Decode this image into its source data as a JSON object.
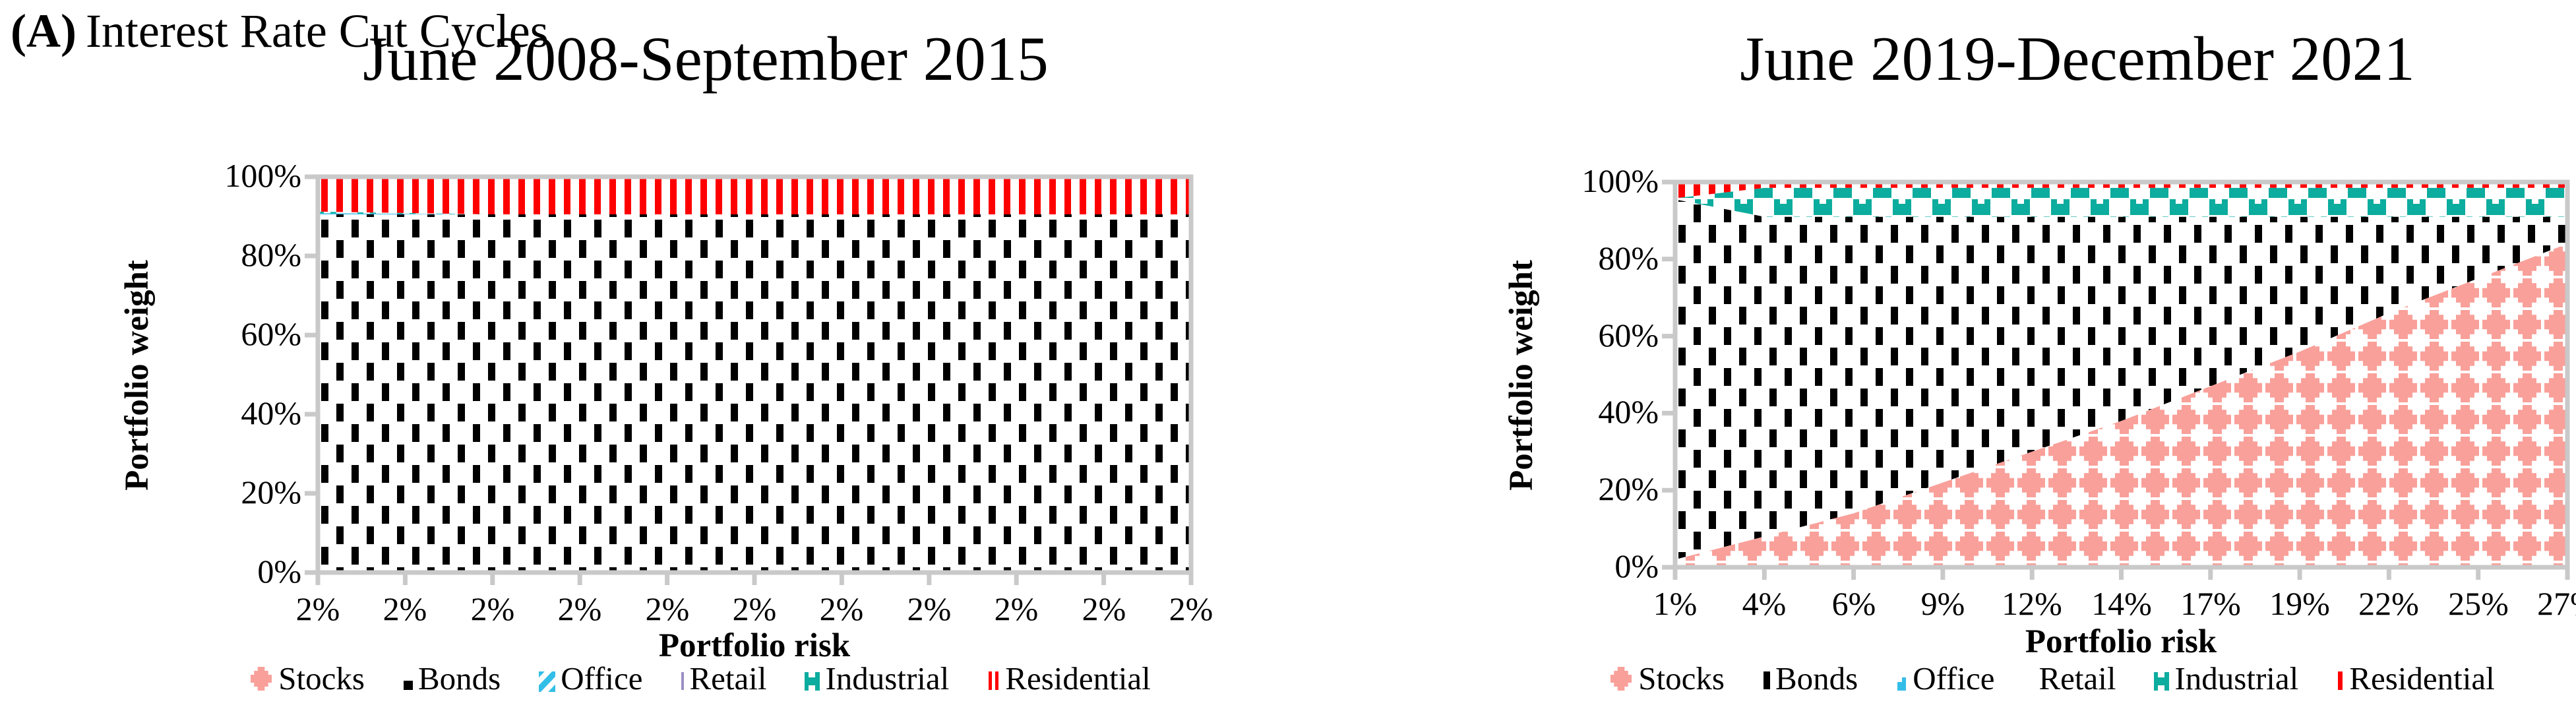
{
  "figure": {
    "label": "(A)",
    "title": "Interest Rate Cut Cycles"
  },
  "colors": {
    "stocks": "#F9A09A",
    "bonds": "#000000",
    "office": "#33BEE8",
    "retail": "#9B8EC4",
    "industrial": "#0CAC9E",
    "residential": "#FF0000",
    "axis": "#C9C9C9",
    "text": "#000000"
  },
  "chart_data": [
    {
      "type": "area",
      "stacked": true,
      "title": "June 2008-September 2015",
      "xlabel": "Portfolio risk",
      "ylabel": "Portfolio weight",
      "ylim": [
        0,
        100
      ],
      "grid": false,
      "legend_position": "bottom",
      "x_values_pct": [
        2,
        2,
        2,
        2,
        2,
        2,
        2,
        2,
        2,
        2,
        2
      ],
      "x_tick_labels": [
        "2%",
        "2%",
        "2%",
        "2%",
        "2%",
        "2%",
        "2%",
        "2%",
        "2%",
        "2%",
        "2%"
      ],
      "y_tick_labels": [
        "0%",
        "20%",
        "40%",
        "60%",
        "80%",
        "100%"
      ],
      "series": [
        {
          "name": "Stocks",
          "values": [
            0,
            0,
            0,
            0,
            0,
            0,
            0,
            0,
            0,
            0,
            0
          ]
        },
        {
          "name": "Bonds",
          "values": [
            90.5,
            90.5,
            90.5,
            90.5,
            90.5,
            90.5,
            90.5,
            90.5,
            90.5,
            90.5,
            90.5
          ]
        },
        {
          "name": "Office",
          "values": [
            0.3,
            0.15,
            0,
            0,
            0,
            0,
            0,
            0,
            0,
            0,
            0
          ]
        },
        {
          "name": "Retail",
          "values": [
            0,
            0,
            0,
            0,
            0,
            0,
            0,
            0,
            0,
            0,
            0
          ]
        },
        {
          "name": "Industrial",
          "values": [
            0.4,
            0.2,
            0,
            0,
            0,
            0,
            0,
            0,
            0,
            0,
            0
          ]
        },
        {
          "name": "Residential",
          "values": [
            8.8,
            9.15,
            9.5,
            9.5,
            9.5,
            9.5,
            9.5,
            9.5,
            9.5,
            9.5,
            9.5
          ]
        }
      ],
      "legend": [
        {
          "label": "Stocks",
          "marker": "stocks"
        },
        {
          "label": "Bonds",
          "marker": "bonds-square"
        },
        {
          "label": "Office",
          "marker": "office-striped"
        },
        {
          "label": "Retail",
          "marker": "retail-line"
        },
        {
          "label": "Industrial",
          "marker": "industrial"
        },
        {
          "label": "Residential",
          "marker": "residential-double"
        }
      ]
    },
    {
      "type": "area",
      "stacked": true,
      "title": "June 2019-December 2021",
      "xlabel": "Portfolio risk",
      "ylabel": "Portfolio weight",
      "ylim": [
        0,
        100
      ],
      "grid": false,
      "legend_position": "bottom",
      "x_values_pct": [
        1,
        4,
        6,
        9,
        12,
        14,
        17,
        19,
        22,
        25,
        27
      ],
      "x_tick_labels": [
        "1%",
        "4%",
        "6%",
        "9%",
        "12%",
        "14%",
        "17%",
        "19%",
        "22%",
        "25%",
        "27%"
      ],
      "y_tick_labels": [
        "0%",
        "20%",
        "40%",
        "60%",
        "80%",
        "100%"
      ],
      "series": [
        {
          "name": "Stocks",
          "values": [
            2,
            8,
            14,
            22,
            30,
            38,
            47,
            56,
            66,
            75,
            84
          ]
        },
        {
          "name": "Bonds",
          "values": [
            93.5,
            83,
            77,
            69,
            61,
            53,
            44,
            35,
            25,
            16,
            7
          ]
        },
        {
          "name": "Office",
          "values": [
            0,
            0,
            0,
            0,
            0,
            0,
            0,
            0,
            0,
            0,
            0
          ]
        },
        {
          "name": "Retail",
          "values": [
            0,
            0,
            0,
            0,
            0,
            0,
            0,
            0,
            0,
            0,
            0
          ]
        },
        {
          "name": "Industrial",
          "values": [
            0.3,
            7.5,
            7.5,
            7.5,
            7.5,
            7.5,
            7.5,
            7.5,
            7.5,
            7.5,
            7.5
          ]
        },
        {
          "name": "Residential",
          "values": [
            4.2,
            1.5,
            1.5,
            1.5,
            1.5,
            1.5,
            1.5,
            1.5,
            1.5,
            1.5,
            1.5
          ]
        }
      ],
      "legend": [
        {
          "label": "Stocks",
          "marker": "stocks"
        },
        {
          "label": "Bonds",
          "marker": "bonds-dash"
        },
        {
          "label": "Office",
          "marker": "office-small"
        },
        {
          "label": "Retail",
          "marker": "retail-none"
        },
        {
          "label": "Industrial",
          "marker": "industrial"
        },
        {
          "label": "Residential",
          "marker": "residential-single"
        }
      ]
    }
  ]
}
